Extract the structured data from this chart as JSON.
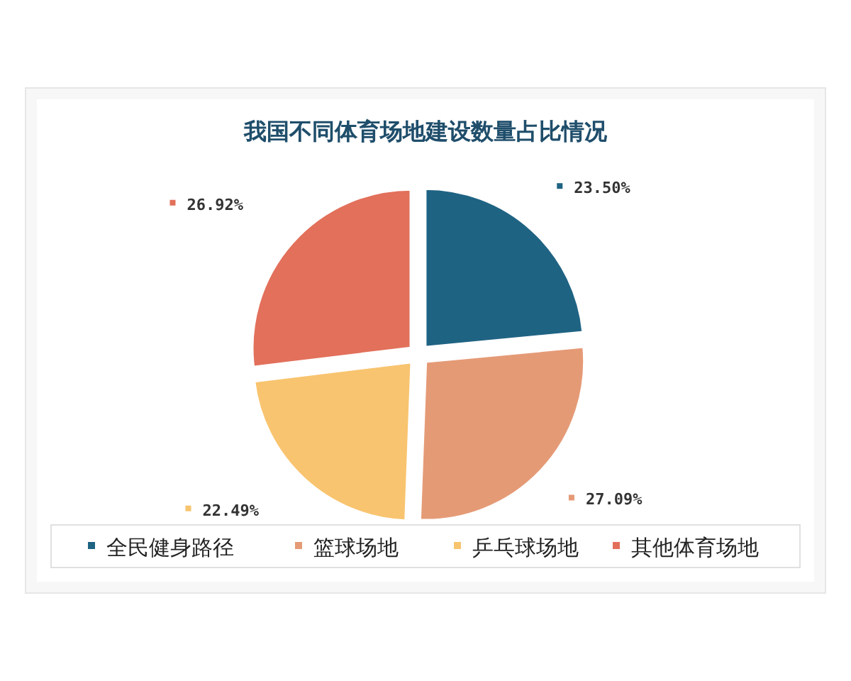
{
  "chart_data": {
    "type": "pie",
    "title": "我国不同体育场地建设数量占比情况",
    "categories": [
      "全民健身路径",
      "篮球场地",
      "乒乓球场地",
      "其他体育场地"
    ],
    "values": [
      23.5,
      27.09,
      22.49,
      26.92
    ],
    "value_labels": [
      "23.50%",
      "27.09%",
      "22.49%",
      "26.92%"
    ],
    "colors": [
      "#1f6383",
      "#e59a76",
      "#f8c46f",
      "#e2705b"
    ],
    "legend": "bottom"
  }
}
